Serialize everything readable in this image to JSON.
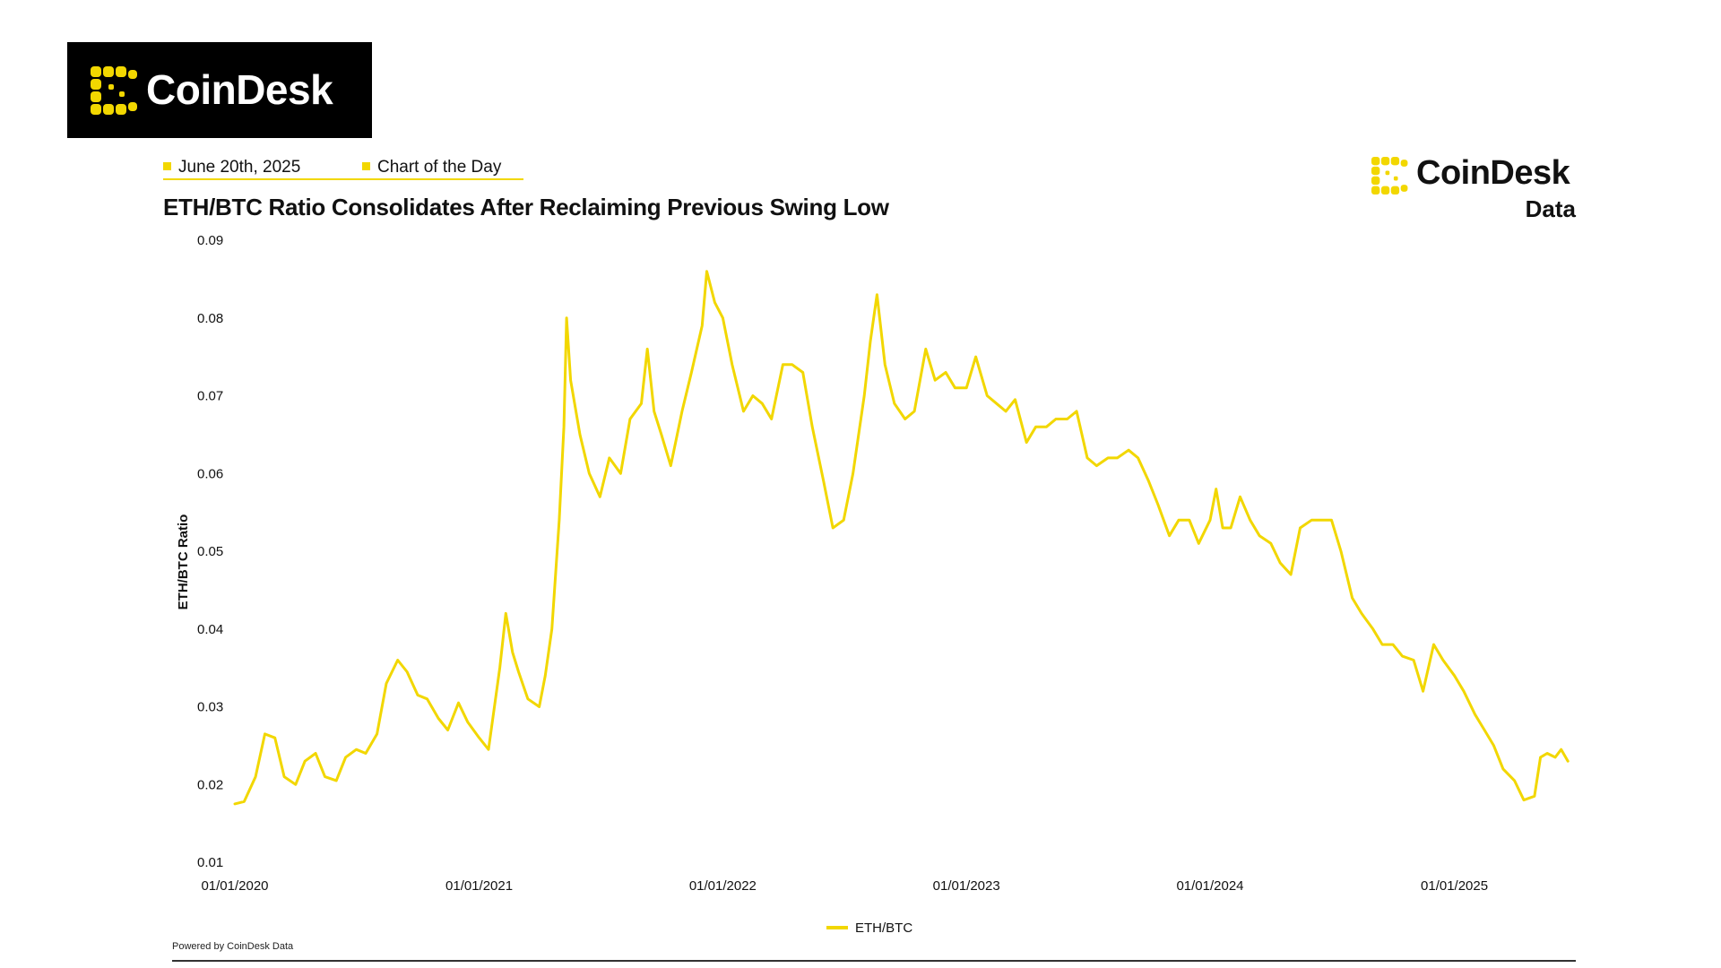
{
  "header": {
    "logo_text": "CoinDesk",
    "date_tag": "June 20th, 2025",
    "category_tag": "Chart of the Day",
    "brand_name": "CoinDesk",
    "brand_sub": "Data"
  },
  "footer": {
    "powered_by": "Powered by CoinDesk Data"
  },
  "colors": {
    "accent": "#f2d700",
    "line": "#f2d700",
    "text": "#111111",
    "logo_bg": "#000000"
  },
  "chart_data": {
    "type": "line",
    "title": "ETH/BTC Ratio Consolidates After Reclaiming Previous Swing Low",
    "xlabel": "",
    "ylabel": "ETH/BTC Ratio",
    "ylim": [
      0.01,
      0.09
    ],
    "yticks": [
      "0.09",
      "0.08",
      "0.07",
      "0.06",
      "0.05",
      "0.04",
      "0.03",
      "0.02",
      "0.01"
    ],
    "xticks": [
      "01/01/2020",
      "01/01/2021",
      "01/01/2022",
      "01/01/2023",
      "01/01/2024",
      "01/01/2025"
    ],
    "grid": false,
    "legend_position": "bottom-center",
    "series": [
      {
        "name": "ETH/BTC",
        "color": "#f2d700",
        "points": [
          [
            "2020-01-01",
            0.0175
          ],
          [
            "2020-01-15",
            0.0178
          ],
          [
            "2020-02-01",
            0.021
          ],
          [
            "2020-02-15",
            0.0265
          ],
          [
            "2020-03-01",
            0.026
          ],
          [
            "2020-03-15",
            0.021
          ],
          [
            "2020-04-01",
            0.02
          ],
          [
            "2020-04-15",
            0.023
          ],
          [
            "2020-05-01",
            0.024
          ],
          [
            "2020-05-15",
            0.021
          ],
          [
            "2020-06-01",
            0.0205
          ],
          [
            "2020-06-15",
            0.0235
          ],
          [
            "2020-07-01",
            0.0245
          ],
          [
            "2020-07-15",
            0.024
          ],
          [
            "2020-08-01",
            0.0265
          ],
          [
            "2020-08-15",
            0.033
          ],
          [
            "2020-09-01",
            0.036
          ],
          [
            "2020-09-15",
            0.0345
          ],
          [
            "2020-10-01",
            0.0315
          ],
          [
            "2020-10-15",
            0.031
          ],
          [
            "2020-11-01",
            0.0285
          ],
          [
            "2020-11-15",
            0.027
          ],
          [
            "2020-12-01",
            0.0305
          ],
          [
            "2020-12-15",
            0.028
          ],
          [
            "2021-01-01",
            0.026
          ],
          [
            "2021-01-15",
            0.0245
          ],
          [
            "2021-02-01",
            0.035
          ],
          [
            "2021-02-10",
            0.042
          ],
          [
            "2021-02-20",
            0.037
          ],
          [
            "2021-03-01",
            0.0345
          ],
          [
            "2021-03-15",
            0.031
          ],
          [
            "2021-04-01",
            0.03
          ],
          [
            "2021-04-10",
            0.034
          ],
          [
            "2021-04-20",
            0.04
          ],
          [
            "2021-05-01",
            0.054
          ],
          [
            "2021-05-08",
            0.066
          ],
          [
            "2021-05-12",
            0.08
          ],
          [
            "2021-05-18",
            0.072
          ],
          [
            "2021-06-01",
            0.065
          ],
          [
            "2021-06-15",
            0.06
          ],
          [
            "2021-07-01",
            0.057
          ],
          [
            "2021-07-15",
            0.062
          ],
          [
            "2021-08-01",
            0.06
          ],
          [
            "2021-08-15",
            0.067
          ],
          [
            "2021-09-01",
            0.069
          ],
          [
            "2021-09-10",
            0.076
          ],
          [
            "2021-09-20",
            0.068
          ],
          [
            "2021-10-01",
            0.065
          ],
          [
            "2021-10-15",
            0.061
          ],
          [
            "2021-11-01",
            0.068
          ],
          [
            "2021-11-15",
            0.073
          ],
          [
            "2021-12-01",
            0.079
          ],
          [
            "2021-12-08",
            0.086
          ],
          [
            "2021-12-20",
            0.082
          ],
          [
            "2022-01-01",
            0.08
          ],
          [
            "2022-01-15",
            0.074
          ],
          [
            "2022-02-01",
            0.068
          ],
          [
            "2022-02-15",
            0.07
          ],
          [
            "2022-03-01",
            0.069
          ],
          [
            "2022-03-15",
            0.067
          ],
          [
            "2022-04-01",
            0.074
          ],
          [
            "2022-04-15",
            0.074
          ],
          [
            "2022-05-01",
            0.073
          ],
          [
            "2022-05-15",
            0.066
          ],
          [
            "2022-06-01",
            0.059
          ],
          [
            "2022-06-15",
            0.053
          ],
          [
            "2022-07-01",
            0.054
          ],
          [
            "2022-07-15",
            0.06
          ],
          [
            "2022-08-01",
            0.07
          ],
          [
            "2022-08-10",
            0.077
          ],
          [
            "2022-08-20",
            0.083
          ],
          [
            "2022-09-01",
            0.074
          ],
          [
            "2022-09-15",
            0.069
          ],
          [
            "2022-10-01",
            0.067
          ],
          [
            "2022-10-15",
            0.068
          ],
          [
            "2022-11-01",
            0.076
          ],
          [
            "2022-11-15",
            0.072
          ],
          [
            "2022-12-01",
            0.073
          ],
          [
            "2022-12-15",
            0.071
          ],
          [
            "2023-01-01",
            0.071
          ],
          [
            "2023-01-15",
            0.075
          ],
          [
            "2023-02-01",
            0.07
          ],
          [
            "2023-02-15",
            0.069
          ],
          [
            "2023-03-01",
            0.068
          ],
          [
            "2023-03-15",
            0.0695
          ],
          [
            "2023-04-01",
            0.064
          ],
          [
            "2023-04-15",
            0.066
          ],
          [
            "2023-05-01",
            0.066
          ],
          [
            "2023-05-15",
            0.067
          ],
          [
            "2023-06-01",
            0.067
          ],
          [
            "2023-06-15",
            0.068
          ],
          [
            "2023-07-01",
            0.062
          ],
          [
            "2023-07-15",
            0.061
          ],
          [
            "2023-08-01",
            0.062
          ],
          [
            "2023-08-15",
            0.062
          ],
          [
            "2023-09-01",
            0.063
          ],
          [
            "2023-09-15",
            0.062
          ],
          [
            "2023-10-01",
            0.059
          ],
          [
            "2023-10-15",
            0.056
          ],
          [
            "2023-11-01",
            0.052
          ],
          [
            "2023-11-15",
            0.054
          ],
          [
            "2023-12-01",
            0.054
          ],
          [
            "2023-12-15",
            0.051
          ],
          [
            "2024-01-01",
            0.054
          ],
          [
            "2024-01-10",
            0.058
          ],
          [
            "2024-01-20",
            0.053
          ],
          [
            "2024-02-01",
            0.053
          ],
          [
            "2024-02-15",
            0.057
          ],
          [
            "2024-03-01",
            0.054
          ],
          [
            "2024-03-15",
            0.052
          ],
          [
            "2024-04-01",
            0.051
          ],
          [
            "2024-04-15",
            0.0485
          ],
          [
            "2024-05-01",
            0.047
          ],
          [
            "2024-05-15",
            0.053
          ],
          [
            "2024-06-01",
            0.054
          ],
          [
            "2024-06-15",
            0.054
          ],
          [
            "2024-07-01",
            0.054
          ],
          [
            "2024-07-15",
            0.05
          ],
          [
            "2024-08-01",
            0.044
          ],
          [
            "2024-08-15",
            0.042
          ],
          [
            "2024-09-01",
            0.04
          ],
          [
            "2024-09-15",
            0.038
          ],
          [
            "2024-10-01",
            0.038
          ],
          [
            "2024-10-15",
            0.0365
          ],
          [
            "2024-11-01",
            0.036
          ],
          [
            "2024-11-15",
            0.032
          ],
          [
            "2024-12-01",
            0.038
          ],
          [
            "2024-12-15",
            0.036
          ],
          [
            "2025-01-01",
            0.034
          ],
          [
            "2025-01-15",
            0.032
          ],
          [
            "2025-02-01",
            0.029
          ],
          [
            "2025-02-15",
            0.027
          ],
          [
            "2025-03-01",
            0.025
          ],
          [
            "2025-03-15",
            0.022
          ],
          [
            "2025-04-01",
            0.0205
          ],
          [
            "2025-04-15",
            0.018
          ],
          [
            "2025-05-01",
            0.0185
          ],
          [
            "2025-05-10",
            0.0235
          ],
          [
            "2025-05-20",
            0.024
          ],
          [
            "2025-06-01",
            0.0235
          ],
          [
            "2025-06-10",
            0.0245
          ],
          [
            "2025-06-20",
            0.023
          ]
        ]
      }
    ]
  }
}
